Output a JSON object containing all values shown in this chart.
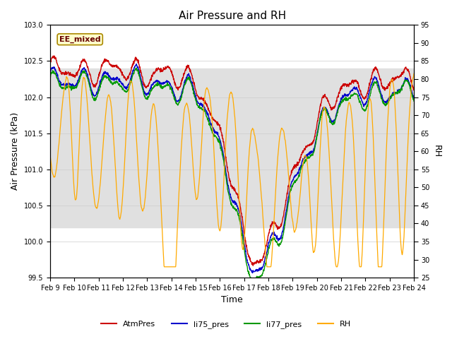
{
  "title": "Air Pressure and RH",
  "xlabel": "Time",
  "ylabel_left": "Air Pressure (kPa)",
  "ylabel_right": "RH",
  "annotation": "EE_mixed",
  "ylim_left": [
    99.5,
    103.0
  ],
  "ylim_right": [
    25,
    95
  ],
  "yticks_left": [
    99.5,
    100.0,
    100.5,
    101.0,
    101.5,
    102.0,
    102.5,
    103.0
  ],
  "yticks_right": [
    25,
    30,
    35,
    40,
    45,
    50,
    55,
    60,
    65,
    70,
    75,
    80,
    85,
    90,
    95
  ],
  "xtick_labels": [
    "Feb 9",
    "Feb 10",
    "Feb 11",
    "Feb 12",
    "Feb 13",
    "Feb 14",
    "Feb 15",
    "Feb 16",
    "Feb 17",
    "Feb 18",
    "Feb 19",
    "Feb 20",
    "Feb 21",
    "Feb 22",
    "Feb 23",
    "Feb 24"
  ],
  "n_days": 15,
  "n_points": 1500,
  "colors": {
    "AtmPres": "#cc0000",
    "li75_pres": "#0000cc",
    "li77_pres": "#009900",
    "RH": "#ffaa00"
  },
  "legend_labels": [
    "AtmPres",
    "li75_pres",
    "li77_pres",
    "RH"
  ],
  "bg_band_color": "#e0e0e0",
  "bg_band_ylim": [
    100.2,
    102.4
  ],
  "title_fontsize": 11,
  "tick_fontsize": 7,
  "label_fontsize": 9
}
